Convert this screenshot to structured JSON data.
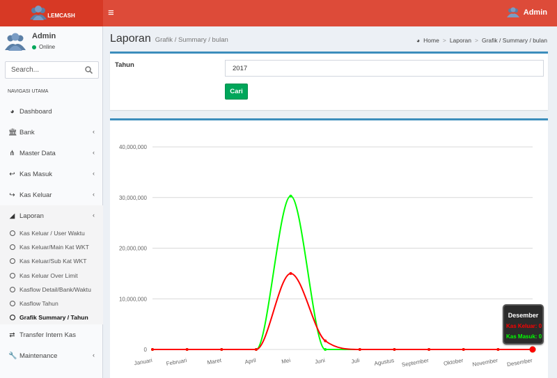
{
  "app": {
    "logo_text": "LEMCASH",
    "user_name": "Admin"
  },
  "sidebar": {
    "user_name": "Admin",
    "status": "Online",
    "search_placeholder": "Search...",
    "nav_header": "NAVIGASI UTAMA",
    "menu_top": [
      {
        "label": "Dashboard",
        "icon": "dashboard-icon",
        "has_chevron": false
      },
      {
        "label": "Bank",
        "icon": "bank-icon",
        "has_chevron": true
      },
      {
        "label": "Master Data",
        "icon": "sitemap-icon",
        "has_chevron": true
      },
      {
        "label": "Kas Masuk",
        "icon": "reply-icon",
        "has_chevron": true
      },
      {
        "label": "Kas Keluar",
        "icon": "share-icon",
        "has_chevron": true
      },
      {
        "label": "Laporan",
        "icon": "area-chart-icon",
        "has_chevron": true
      }
    ],
    "laporan_items": [
      {
        "label": "Kas Keluar / User Waktu"
      },
      {
        "label": "Kas Keluar/Main Kat WKT"
      },
      {
        "label": "Kas Keluar/Sub Kat WKT"
      },
      {
        "label": "Kas Keluar Over Limit"
      },
      {
        "label": "Kasflow Detail/Bank/Waktu"
      },
      {
        "label": "Kasflow Tahun"
      },
      {
        "label": "Grafik Summary / Tahun"
      }
    ],
    "menu_bottom": [
      {
        "label": "Transfer Intern Kas",
        "icon": "exchange-icon",
        "has_chevron": false
      },
      {
        "label": "Maintenance",
        "icon": "wrench-icon",
        "has_chevron": true
      }
    ]
  },
  "header": {
    "title": "Laporan",
    "subtitle": "Grafik / Summary / bulan",
    "breadcrumb": {
      "home": "Home",
      "laporan": "Laporan",
      "current": "Grafik / Summary / bulan"
    }
  },
  "filter": {
    "label": "Tahun",
    "value": "2017",
    "button": "Cari"
  },
  "colors": {
    "kas_keluar": "#ff0000",
    "kas_masuk": "#00ff00",
    "topbar": "#dd4b39",
    "box_border": "#3c8dbc",
    "button": "#00a65a"
  },
  "chart_data": {
    "type": "line",
    "categories": [
      "Januari",
      "Februari",
      "Maret",
      "April",
      "Mei",
      "Juni",
      "Juli",
      "Agustus",
      "September",
      "Oktober",
      "November",
      "Desember"
    ],
    "series": [
      {
        "name": "Kas Keluar",
        "values": [
          0,
          0,
          0,
          0,
          15000000,
          1700000,
          0,
          0,
          0,
          0,
          0,
          0
        ]
      },
      {
        "name": "Kas Masuk",
        "values": [
          0,
          0,
          0,
          0,
          30300000,
          0,
          0,
          0,
          0,
          0,
          0,
          0
        ]
      }
    ],
    "y_ticks": [
      "0",
      "10,000,000",
      "20,000,000",
      "30,000,000",
      "40,000,000"
    ],
    "ylim": [
      0,
      40000000
    ],
    "grid": true,
    "tooltip": {
      "title": "Desember",
      "lines": [
        "Kas Keluar: 0",
        "Kas Masuk: 0"
      ]
    }
  }
}
